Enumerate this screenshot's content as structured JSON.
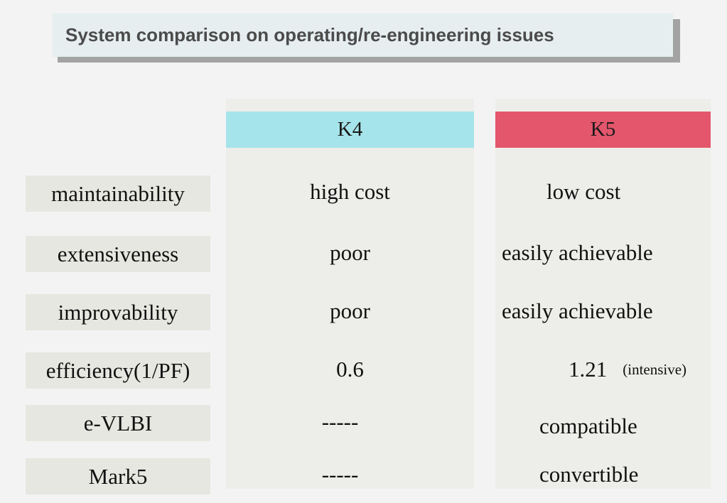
{
  "title": "System comparison on operating/re-engineering issues",
  "columns": {
    "k4": "K4",
    "k5": "K5"
  },
  "colors": {
    "k4_header": "#a5e4ea",
    "k5_header": "#e3566c"
  },
  "rows": [
    {
      "label": "maintainability",
      "k4": "high cost",
      "k5": "low cost",
      "k5_note": ""
    },
    {
      "label": "extensiveness",
      "k4": "poor",
      "k5": "easily achievable",
      "k5_note": ""
    },
    {
      "label": "improvability",
      "k4": "poor",
      "k5": "easily achievable",
      "k5_note": ""
    },
    {
      "label": "efficiency(1/PF)",
      "k4": "0.6",
      "k5": "1.21",
      "k5_note": "(intensive)"
    },
    {
      "label": "e-VLBI",
      "k4": "-----",
      "k5": "compatible",
      "k5_note": ""
    },
    {
      "label": "Mark5",
      "k4": "-----",
      "k5": "convertible",
      "k5_note": ""
    }
  ]
}
